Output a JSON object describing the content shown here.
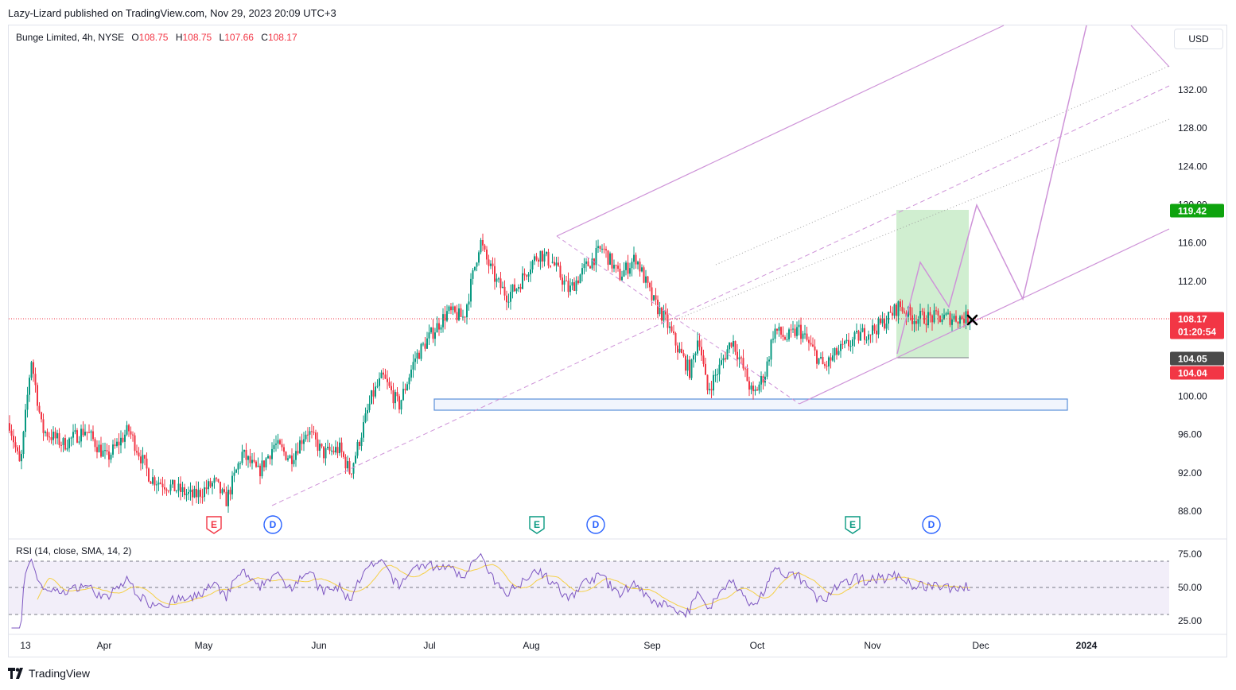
{
  "header": {
    "publish_line": "Lazy-Lizard published on TradingView.com, Nov 29, 2023 20:09 UTC+3"
  },
  "legend": {
    "symbol": "Bunge Limited, 4h, NYSE",
    "open_k": "O",
    "open_v": "108.75",
    "high_k": "H",
    "high_v": "108.75",
    "low_k": "L",
    "low_v": "107.66",
    "close_k": "C",
    "close_v": "108.17"
  },
  "currency": "USD",
  "rsi_legend": "RSI (14, close, SMA, 14, 2)",
  "footer": {
    "brand": "TradingView"
  },
  "colors": {
    "up": "#089981",
    "down": "#f23645",
    "channel": "#ce93d8",
    "rsi": "#7e57c2",
    "rsi_ma": "#f5d046",
    "zone": "#c8ebc8",
    "support": "#5b8fd9"
  },
  "chart_data": {
    "type": "candlestick",
    "price_axis": {
      "range": [
        86,
        135
      ],
      "ticks": [
        "132.00",
        "128.00",
        "124.00",
        "120.00",
        "116.00",
        "112.00",
        "108.00",
        "104.00",
        "100.00",
        "96.00",
        "92.00",
        "88.00"
      ]
    },
    "time_axis": {
      "labels": [
        "13",
        "Apr",
        "May",
        "Jun",
        "Jul",
        "Aug",
        "Sep",
        "Oct",
        "Nov",
        "Dec",
        "2024"
      ]
    },
    "price_tags": [
      {
        "value": "119.42",
        "kind": "target",
        "color": "#0ea30e"
      },
      {
        "value": "108.17",
        "subtext": "01:20:54",
        "kind": "last-price",
        "color": "#f23645"
      },
      {
        "value": "104.05",
        "kind": "entry",
        "color": "#4a4a4a"
      },
      {
        "value": "104.04",
        "kind": "stop",
        "color": "#f23645"
      }
    ],
    "events": [
      {
        "type": "E",
        "label": "E",
        "month": "May",
        "color": "#f23645"
      },
      {
        "type": "D",
        "label": "D",
        "month": "May",
        "color": "#2962ff"
      },
      {
        "type": "E",
        "label": "E",
        "month": "Aug",
        "color": "#089981"
      },
      {
        "type": "D",
        "label": "D",
        "month": "Aug",
        "color": "#2962ff"
      },
      {
        "type": "E",
        "label": "E",
        "month": "Oct",
        "color": "#089981"
      },
      {
        "type": "D",
        "label": "D",
        "month": "Nov",
        "color": "#2962ff"
      }
    ],
    "path_keypoints": [
      {
        "t": 0.0,
        "p": 97.2
      },
      {
        "t": 0.02,
        "p": 92.5
      },
      {
        "t": 0.04,
        "p": 104.0
      },
      {
        "t": 0.06,
        "p": 96.5
      },
      {
        "t": 0.1,
        "p": 95.0
      },
      {
        "t": 0.14,
        "p": 96.5
      },
      {
        "t": 0.18,
        "p": 93.5
      },
      {
        "t": 0.22,
        "p": 96.5
      },
      {
        "t": 0.26,
        "p": 91.5
      },
      {
        "t": 0.3,
        "p": 90.5
      },
      {
        "t": 0.34,
        "p": 89.5
      },
      {
        "t": 0.38,
        "p": 91.0
      },
      {
        "t": 0.4,
        "p": 89.0
      },
      {
        "t": 0.43,
        "p": 94.0
      },
      {
        "t": 0.46,
        "p": 92.0
      },
      {
        "t": 0.49,
        "p": 95.0
      },
      {
        "t": 0.52,
        "p": 93.5
      },
      {
        "t": 0.55,
        "p": 96.5
      },
      {
        "t": 0.58,
        "p": 94.0
      },
      {
        "t": 0.61,
        "p": 94.5
      },
      {
        "t": 0.63,
        "p": 92.0
      },
      {
        "t": 0.65,
        "p": 96.0
      },
      {
        "t": 0.67,
        "p": 100.0
      },
      {
        "t": 0.69,
        "p": 102.0
      },
      {
        "t": 0.72,
        "p": 99.0
      },
      {
        "t": 0.75,
        "p": 104.0
      },
      {
        "t": 0.78,
        "p": 106.5
      },
      {
        "t": 0.81,
        "p": 108.8
      },
      {
        "t": 0.84,
        "p": 108.2
      },
      {
        "t": 0.86,
        "p": 113.5
      },
      {
        "t": 0.87,
        "p": 116.3
      },
      {
        "t": 0.88,
        "p": 114.5
      },
      {
        "t": 0.9,
        "p": 112.0
      },
      {
        "t": 0.92,
        "p": 110.5
      },
      {
        "t": 0.94,
        "p": 111.5
      },
      {
        "t": 0.96,
        "p": 113.5
      },
      {
        "t": 0.98,
        "p": 115.0
      },
      {
        "t": 1.0,
        "p": 114.0
      }
    ],
    "path_keypoints_2": [
      {
        "t": 0.0,
        "p": 114.0
      },
      {
        "t": 0.04,
        "p": 111.0
      },
      {
        "t": 0.08,
        "p": 113.5
      },
      {
        "t": 0.12,
        "p": 115.5
      },
      {
        "t": 0.16,
        "p": 112.5
      },
      {
        "t": 0.2,
        "p": 114.5
      },
      {
        "t": 0.24,
        "p": 110.0
      },
      {
        "t": 0.27,
        "p": 108.0
      },
      {
        "t": 0.3,
        "p": 105.0
      },
      {
        "t": 0.33,
        "p": 102.5
      },
      {
        "t": 0.35,
        "p": 106.5
      },
      {
        "t": 0.37,
        "p": 100.5
      },
      {
        "t": 0.4,
        "p": 103.0
      },
      {
        "t": 0.43,
        "p": 106.0
      },
      {
        "t": 0.46,
        "p": 102.5
      },
      {
        "t": 0.48,
        "p": 100.0
      },
      {
        "t": 0.51,
        "p": 102.5
      },
      {
        "t": 0.53,
        "p": 107.0
      },
      {
        "t": 0.56,
        "p": 106.0
      },
      {
        "t": 0.59,
        "p": 107.0
      },
      {
        "t": 0.62,
        "p": 105.0
      },
      {
        "t": 0.65,
        "p": 103.0
      },
      {
        "t": 0.68,
        "p": 104.5
      },
      {
        "t": 0.71,
        "p": 105.5
      },
      {
        "t": 0.74,
        "p": 106.5
      },
      {
        "t": 0.77,
        "p": 107.0
      },
      {
        "t": 0.8,
        "p": 108.0
      },
      {
        "t": 0.83,
        "p": 109.5
      },
      {
        "t": 0.86,
        "p": 108.2
      },
      {
        "t": 0.88,
        "p": 108.2
      }
    ]
  }
}
